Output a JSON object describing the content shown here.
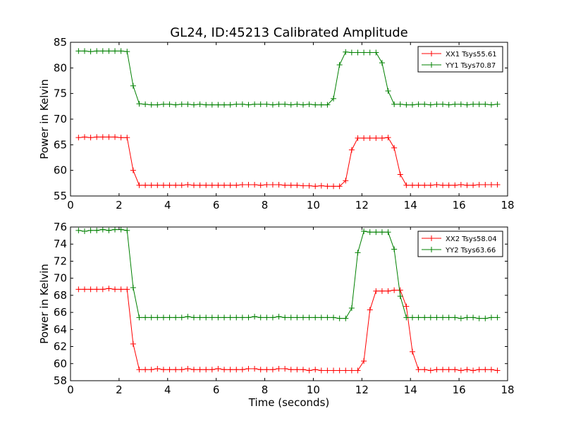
{
  "chart_data": {
    "title": "GL24, ID:45213 Calibrated Amplitude",
    "xlabel": "Time (seconds)",
    "x": [
      0.33,
      0.58,
      0.83,
      1.08,
      1.33,
      1.58,
      1.83,
      2.08,
      2.33,
      2.58,
      2.83,
      3.08,
      3.33,
      3.58,
      3.83,
      4.08,
      4.33,
      4.58,
      4.83,
      5.08,
      5.33,
      5.58,
      5.83,
      6.08,
      6.33,
      6.58,
      6.83,
      7.08,
      7.33,
      7.58,
      7.83,
      8.08,
      8.33,
      8.58,
      8.83,
      9.08,
      9.33,
      9.58,
      9.83,
      10.08,
      10.33,
      10.58,
      10.83,
      11.08,
      11.33,
      11.58,
      11.83,
      12.08,
      12.33,
      12.58,
      12.83,
      13.08,
      13.33,
      13.58,
      13.83,
      14.08,
      14.33,
      14.58,
      14.83,
      15.08,
      15.33,
      15.58,
      15.83,
      16.08,
      16.33,
      16.58,
      16.83,
      17.08,
      17.33,
      17.58
    ],
    "subplots": [
      {
        "type": "line",
        "ylabel": "Power in Kelvin",
        "xlim": [
          0,
          18
        ],
        "ylim": [
          55,
          85
        ],
        "xticks": [
          0,
          2,
          4,
          6,
          8,
          10,
          12,
          14,
          16,
          18
        ],
        "yticks": [
          55,
          60,
          65,
          70,
          75,
          80,
          85
        ],
        "legend_position": "top-right",
        "series": [
          {
            "name": "XX1 Tsys55.61",
            "color": "#ff0000",
            "values": [
              66.4,
              66.5,
              66.4,
              66.5,
              66.5,
              66.5,
              66.5,
              66.4,
              66.4,
              60.0,
              57.1,
              57.1,
              57.1,
              57.1,
              57.1,
              57.1,
              57.1,
              57.1,
              57.2,
              57.1,
              57.1,
              57.1,
              57.1,
              57.1,
              57.1,
              57.1,
              57.1,
              57.2,
              57.2,
              57.2,
              57.1,
              57.2,
              57.2,
              57.2,
              57.1,
              57.1,
              57.1,
              57.0,
              57.0,
              56.9,
              57.0,
              56.9,
              56.9,
              56.9,
              58.0,
              64.0,
              66.3,
              66.3,
              66.3,
              66.3,
              66.3,
              66.4,
              64.4,
              59.2,
              57.1,
              57.1,
              57.1,
              57.1,
              57.1,
              57.2,
              57.1,
              57.1,
              57.1,
              57.2,
              57.1,
              57.1,
              57.2,
              57.2,
              57.2,
              57.2
            ]
          },
          {
            "name": "YY1 Tsys70.87",
            "color": "#008000",
            "values": [
              83.3,
              83.3,
              83.2,
              83.3,
              83.3,
              83.3,
              83.3,
              83.3,
              83.2,
              76.5,
              73.0,
              72.9,
              72.8,
              72.8,
              72.9,
              72.9,
              72.8,
              72.9,
              72.9,
              72.8,
              72.9,
              72.8,
              72.8,
              72.8,
              72.8,
              72.8,
              72.9,
              72.9,
              72.8,
              72.9,
              72.9,
              72.9,
              72.8,
              72.9,
              72.9,
              72.8,
              72.9,
              72.8,
              72.9,
              72.8,
              72.8,
              72.8,
              74.0,
              80.6,
              83.1,
              83.0,
              83.0,
              83.0,
              83.0,
              83.0,
              81.0,
              75.5,
              72.9,
              72.9,
              72.8,
              72.8,
              72.9,
              72.9,
              72.8,
              72.9,
              72.9,
              72.8,
              72.9,
              72.9,
              72.8,
              72.9,
              72.9,
              72.9,
              72.8,
              72.9
            ]
          }
        ]
      },
      {
        "type": "line",
        "ylabel": "Power in Kelvin",
        "xlim": [
          0,
          18
        ],
        "ylim": [
          58,
          76
        ],
        "xticks": [
          0,
          2,
          4,
          6,
          8,
          10,
          12,
          14,
          16,
          18
        ],
        "yticks": [
          58,
          60,
          62,
          64,
          66,
          68,
          70,
          72,
          74,
          76
        ],
        "legend_position": "top-right",
        "series": [
          {
            "name": "XX2 Tsys58.04",
            "color": "#ff0000",
            "values": [
              68.7,
              68.7,
              68.7,
              68.7,
              68.7,
              68.8,
              68.7,
              68.7,
              68.7,
              62.3,
              59.3,
              59.3,
              59.3,
              59.4,
              59.3,
              59.3,
              59.3,
              59.3,
              59.4,
              59.3,
              59.3,
              59.3,
              59.3,
              59.4,
              59.3,
              59.3,
              59.3,
              59.3,
              59.4,
              59.4,
              59.3,
              59.3,
              59.3,
              59.4,
              59.4,
              59.3,
              59.3,
              59.3,
              59.2,
              59.3,
              59.2,
              59.2,
              59.2,
              59.2,
              59.2,
              59.2,
              59.2,
              60.3,
              66.3,
              68.5,
              68.5,
              68.5,
              68.6,
              68.6,
              66.7,
              61.4,
              59.3,
              59.3,
              59.2,
              59.3,
              59.3,
              59.3,
              59.3,
              59.2,
              59.3,
              59.2,
              59.3,
              59.3,
              59.3,
              59.2
            ]
          },
          {
            "name": "YY2 Tsys63.66",
            "color": "#008000",
            "values": [
              75.6,
              75.5,
              75.6,
              75.6,
              75.7,
              75.6,
              75.7,
              75.7,
              75.6,
              68.9,
              65.4,
              65.4,
              65.4,
              65.4,
              65.4,
              65.4,
              65.4,
              65.4,
              65.5,
              65.4,
              65.4,
              65.4,
              65.4,
              65.4,
              65.4,
              65.4,
              65.4,
              65.4,
              65.4,
              65.5,
              65.4,
              65.4,
              65.4,
              65.5,
              65.4,
              65.4,
              65.4,
              65.4,
              65.4,
              65.4,
              65.4,
              65.4,
              65.4,
              65.3,
              65.3,
              66.5,
              73.0,
              75.5,
              75.4,
              75.4,
              75.4,
              75.4,
              73.4,
              67.9,
              65.4,
              65.4,
              65.4,
              65.4,
              65.4,
              65.4,
              65.4,
              65.4,
              65.4,
              65.3,
              65.4,
              65.4,
              65.3,
              65.3,
              65.4,
              65.4
            ]
          }
        ]
      }
    ]
  }
}
